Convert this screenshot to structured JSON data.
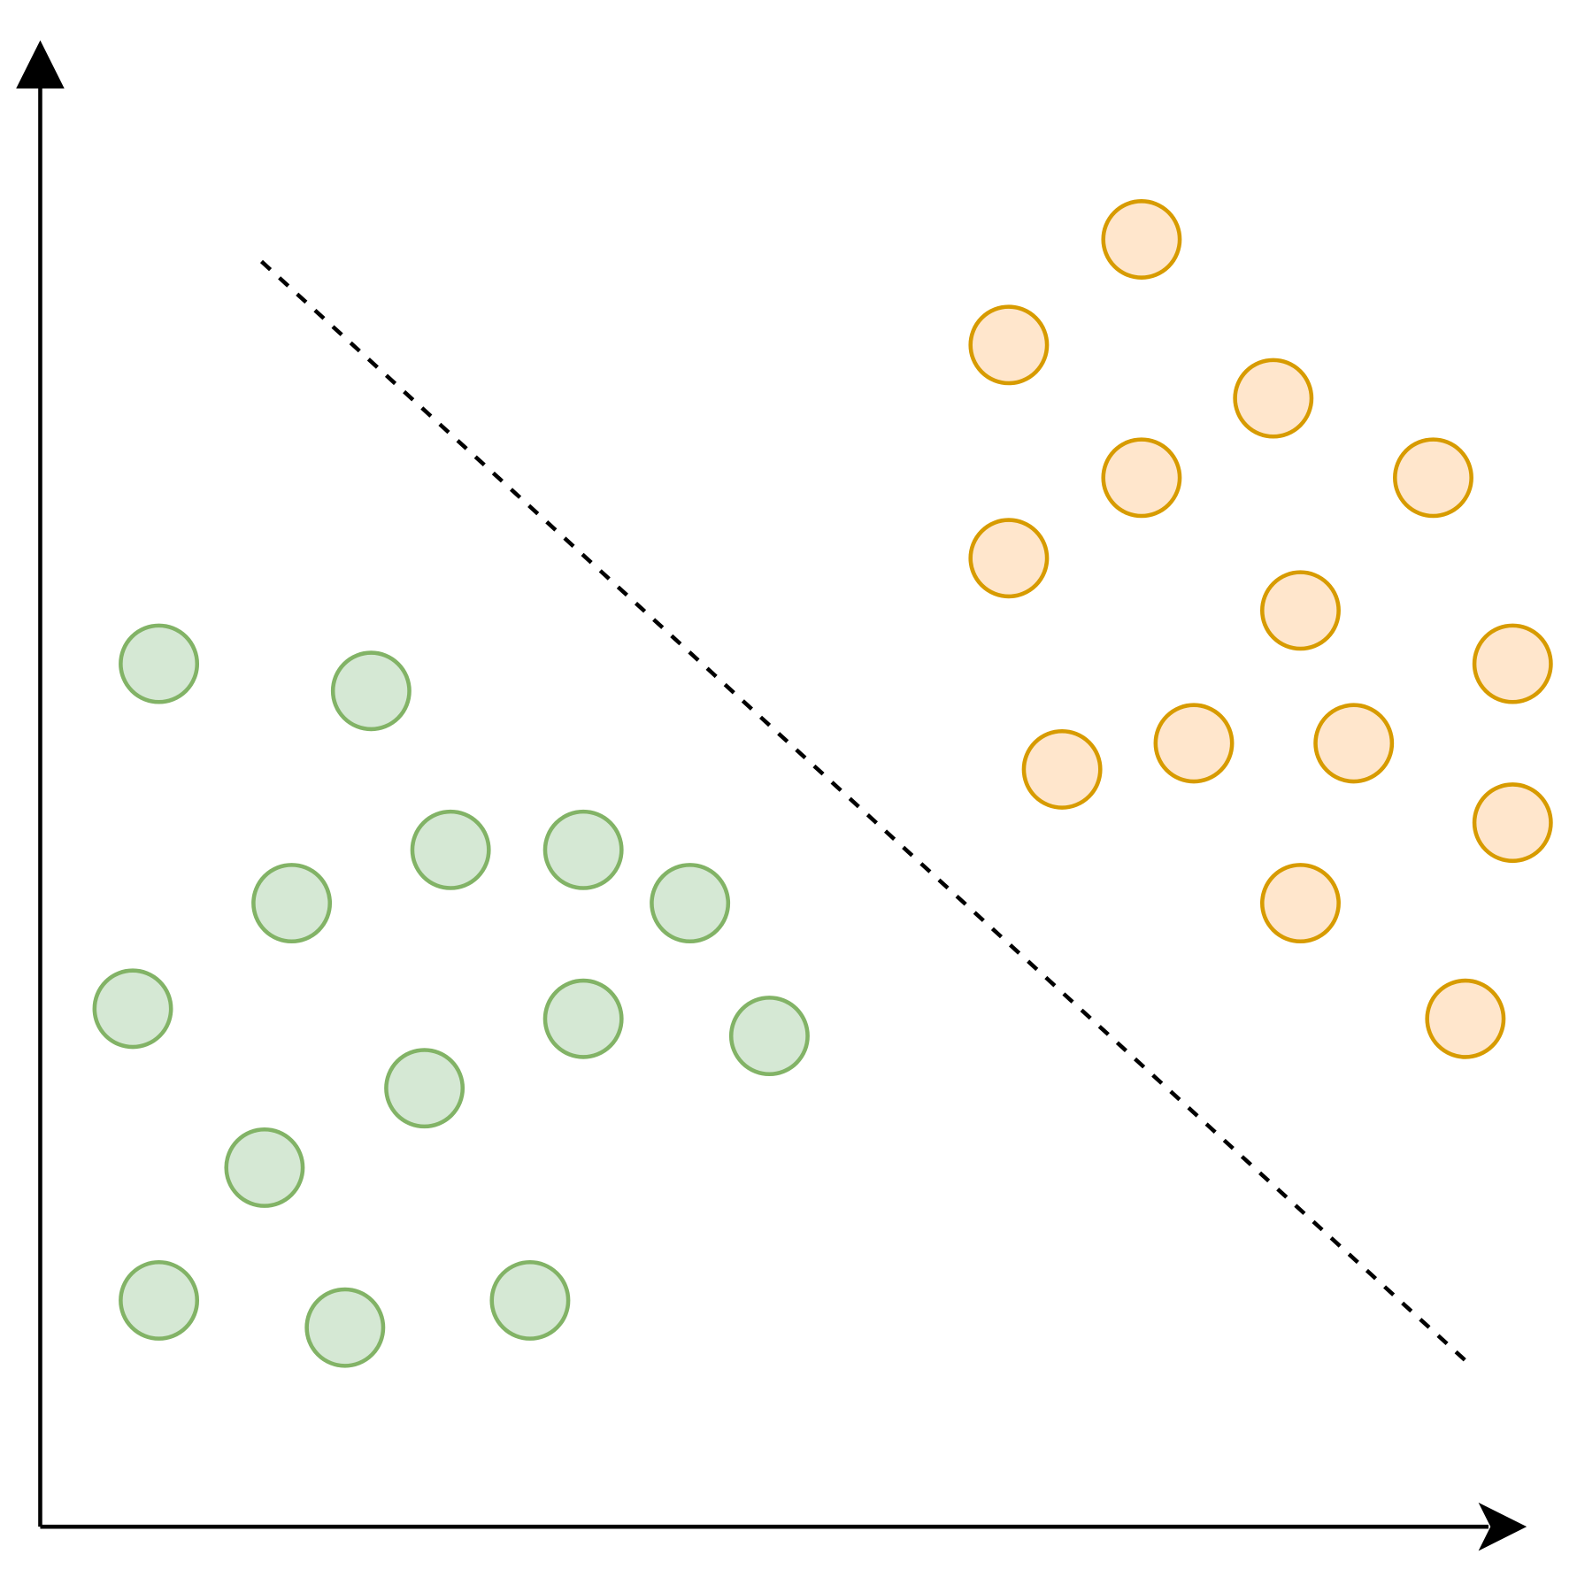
{
  "chart_data": {
    "type": "scatter",
    "xlim": [
      0,
      1475
    ],
    "ylim": [
      0,
      1478
    ],
    "series": [
      {
        "color": "#82b366",
        "fill": "#d5e8d4",
        "x": [
          118,
          329,
          250,
          408,
          540,
          646,
          92,
          540,
          725,
          382,
          223,
          118,
          303,
          487
        ],
        "y": [
          858,
          831,
          620,
          673,
          673,
          620,
          515,
          505,
          488,
          436,
          357,
          225,
          198,
          225
        ]
      },
      {
        "color": "#d79b00",
        "fill": "#ffe6cc",
        "x": [
          1095,
          963,
          1226,
          1095,
          1385,
          963,
          1253,
          1464,
          1016,
          1147,
          1306,
          1464,
          1253,
          1417
        ],
        "y": [
          1280,
          1175,
          1122,
          1043,
          1043,
          963,
          911,
          858,
          753,
          779,
          779,
          700,
          620,
          505
        ]
      }
    ],
    "boundary": {
      "color": "#000000",
      "x": [
        220,
        1425
      ],
      "y": [
        1258,
        158
      ]
    }
  }
}
